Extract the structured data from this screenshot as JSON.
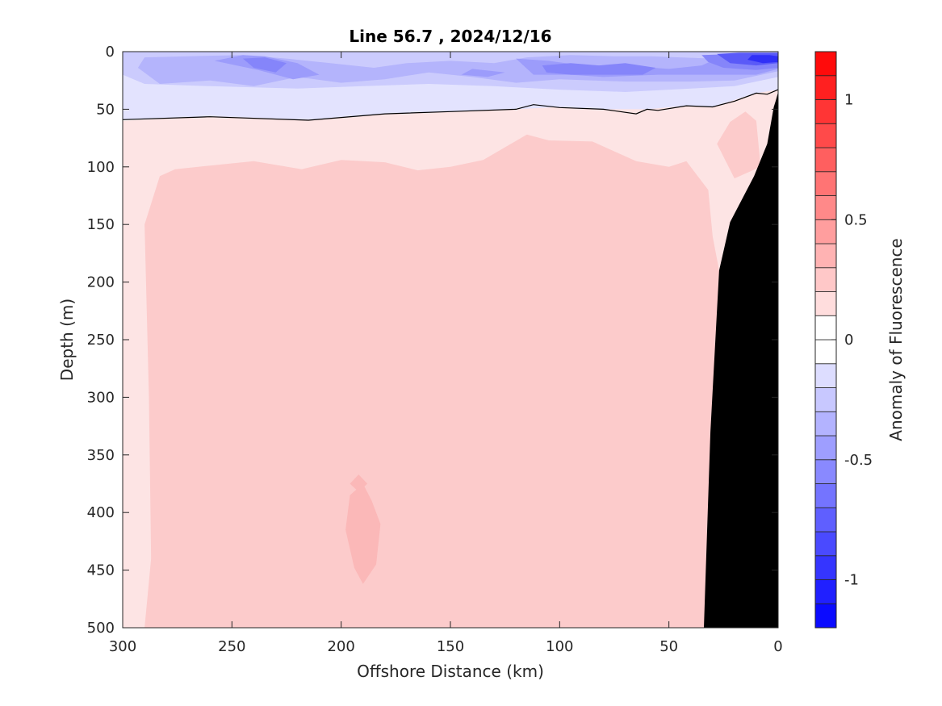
{
  "chart_data": {
    "type": "heatmap",
    "title": "Line 56.7 , 2024/12/16",
    "xlabel": "Offshore Distance (km)",
    "ylabel": "Depth (m)",
    "xlim": [
      300,
      0
    ],
    "ylim": [
      0,
      500
    ],
    "x_ticks": [
      300,
      250,
      200,
      150,
      100,
      50,
      0
    ],
    "x_tick_labels": [
      "300",
      "250",
      "200",
      "150",
      "100",
      "50",
      "0"
    ],
    "y_ticks": [
      0,
      50,
      100,
      150,
      200,
      250,
      300,
      350,
      400,
      450,
      500
    ],
    "y_tick_labels": [
      "0",
      "50",
      "100",
      "150",
      "200",
      "250",
      "300",
      "350",
      "400",
      "450",
      "500"
    ],
    "colorbar": {
      "label": "Anomaly of Fluorescence",
      "range": [
        -1.2,
        1.2
      ],
      "ticks": [
        1,
        0.5,
        0,
        -0.5,
        -1
      ],
      "tick_labels": [
        "1",
        "0.5",
        "0",
        "-0.5",
        "-1"
      ],
      "levels": 24,
      "low_color": "#0000ff",
      "mid_color": "#ffffff",
      "high_color": "#ff0000"
    },
    "fill_levels": {
      "pink_0_2": "#fde4e4",
      "pink_0_3": "#fccbcb",
      "pink_0_4": "#fbb8b8",
      "blue_m0_1": "#e3e3fe",
      "blue_m0_2": "#cbcbfd",
      "blue_m0_3": "#b4b4fc",
      "blue_m0_4": "#9c9cfb",
      "blue_m0_5": "#8585fa",
      "blue_m0_7": "#5a5af8",
      "blue_m0_9": "#3030f7"
    },
    "contour_line": {
      "level": 0,
      "x": [
        300,
        260,
        215,
        180,
        150,
        120,
        112,
        100,
        80,
        65,
        60,
        55,
        42,
        30,
        20,
        10,
        5,
        0
      ],
      "y": [
        59,
        56.5,
        59.5,
        54,
        52,
        50,
        46,
        48.5,
        50,
        54,
        50,
        51,
        47,
        48,
        43,
        36,
        37,
        33
      ]
    },
    "bathymetry": {
      "color": "#000000",
      "x": [
        34,
        31,
        27,
        22,
        11,
        5,
        2,
        1,
        0
      ],
      "y": [
        500,
        330,
        190,
        148,
        108,
        80,
        48,
        42,
        35
      ]
    }
  }
}
